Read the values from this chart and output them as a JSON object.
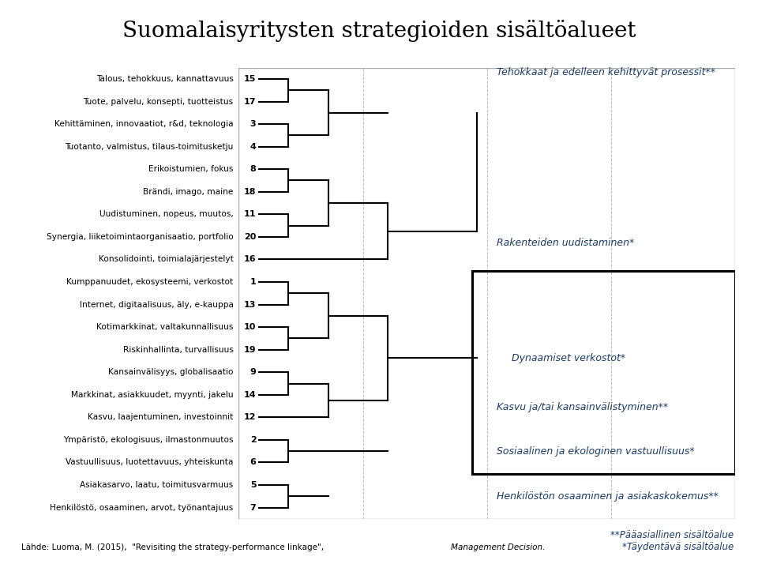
{
  "title": "Suomalaisyritysten strategioiden sisältöalueet",
  "title_fontsize": 20,
  "background_color": "#ebebeb",
  "fig_bg": "#ffffff",
  "border_color": "#999999",
  "text_color": "#1a3a6b",
  "line_color": "#000000",
  "left_labels": [
    [
      "Talous, tehokkuus, kannattavuus",
      "Tuote, palvelu, konsepti, tuotteistus",
      "Kehittäminen, innovaatiot, r&d, teknologia",
      "Tuotanto, valmistus, tilaus-toimitusketju"
    ],
    [
      "Erikoistumien, fokus",
      "Brändi, imago, maine",
      "Uudistuminen, nopeus, muutos,",
      "Synergia, liiketoimintaorganisaatio, portfolio",
      "Konsolidointi, toimialajärjestelyt"
    ],
    [
      "Kumppanuudet, ekosysteemi, verkostot",
      "Internet, digitaalisuus, äly, e-kauppa",
      "Kotimarkkinat, valtakunnallisuus",
      "Riskinhallinta, turvallisuus"
    ],
    [
      "Kansainvälisyys, globalisaatio",
      "Markkinat, asiakkuudet, myynti, jakelu",
      "Kasvu, laajentuminen, investoinnit"
    ],
    [
      "Ympäristö, ekologisuus, ilmastonmuutos",
      "Vastuullisuus, luotettavuus, yhteiskunta"
    ],
    [
      "Asiakasarvo, laatu, toimitusvarmuus",
      "Henkilöstö, osaaminen, arvot, työnantajuus"
    ]
  ],
  "row_numbers": [
    15,
    17,
    3,
    4,
    8,
    18,
    11,
    20,
    16,
    1,
    13,
    10,
    19,
    9,
    14,
    12,
    2,
    6,
    5,
    7
  ],
  "cluster_labels": [
    "Tehokkaat ja edelleen kehittyvät prosessit**",
    "Rakenteiden uudistaminen*",
    "Dynaamiset verkostot*",
    "Kasvu ja/tai kansainvälistyminen**",
    "Sosiaalinen ja ekologinen vastuullisuus*",
    "Henkilöstön osaaminen ja asiakaskokemus**"
  ],
  "footer_note": "**Pääasiallinen sisältöalue\n*Täydentävä sisältöalue",
  "source_normal": "Lähde: Luoma, M. (2015),  \"Revisiting the strategy-performance linkage\", ",
  "source_italic": "Management Decision."
}
